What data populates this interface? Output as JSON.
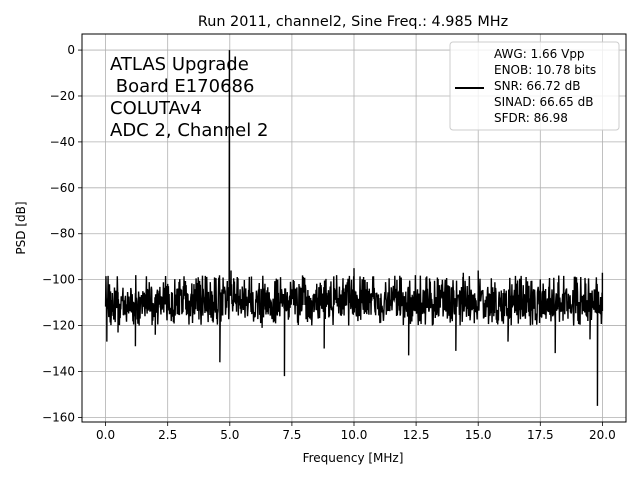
{
  "chart_data": {
    "type": "line",
    "title": "Run 2011, channel2, Sine Freq.: 4.985 MHz",
    "xlabel": "Frequency [MHz]",
    "ylabel": "PSD [dB]",
    "xlim": [
      -0.95,
      20.95
    ],
    "ylim": [
      -162,
      7
    ],
    "xticks": [
      0.0,
      2.5,
      5.0,
      7.5,
      10.0,
      12.5,
      15.0,
      17.5,
      20.0
    ],
    "xtick_labels": [
      "0.0",
      "2.5",
      "5.0",
      "7.5",
      "10.0",
      "12.5",
      "15.0",
      "17.5",
      "20.0"
    ],
    "yticks": [
      0,
      -20,
      -40,
      -60,
      -80,
      -100,
      -120,
      -140,
      -160
    ],
    "ytick_labels": [
      "0",
      "−20",
      "−40",
      "−60",
      "−80",
      "−100",
      "−120",
      "−140",
      "−160"
    ],
    "grid": true,
    "legend_position": "top-right",
    "legend_lines": [
      "AWG: 1.66 Vpp",
      "ENOB: 10.78 bits",
      "SNR: 66.72 dB",
      "SINAD: 66.65 dB",
      "SFDR: 86.98"
    ],
    "annotation_lines": [
      "ATLAS Upgrade",
      " Board E170686",
      "COLUTAv4",
      "ADC 2, Channel 2"
    ],
    "series": [
      {
        "color": "#000000",
        "noise_floor_db": -110,
        "noise_band_db": [
          -120,
          -98
        ],
        "x": [
          0.0,
          0.05,
          0.5,
          1.2,
          1.35,
          2.0,
          4.3,
          4.6,
          4.9,
          4.985,
          5.05,
          5.5,
          6.3,
          7.2,
          8.8,
          10.0,
          12.2,
          14.1,
          14.4,
          15.0,
          16.2,
          18.1,
          19.5,
          19.8,
          20.0
        ],
        "y": [
          -110,
          -127,
          -123,
          -129,
          -120,
          -124,
          -118,
          -136,
          -104,
          0,
          -96,
          -103,
          -121,
          -142,
          -130,
          -95,
          -133,
          -131,
          -97,
          -96,
          -127,
          -132,
          -126,
          -155,
          -97
        ]
      }
    ]
  }
}
